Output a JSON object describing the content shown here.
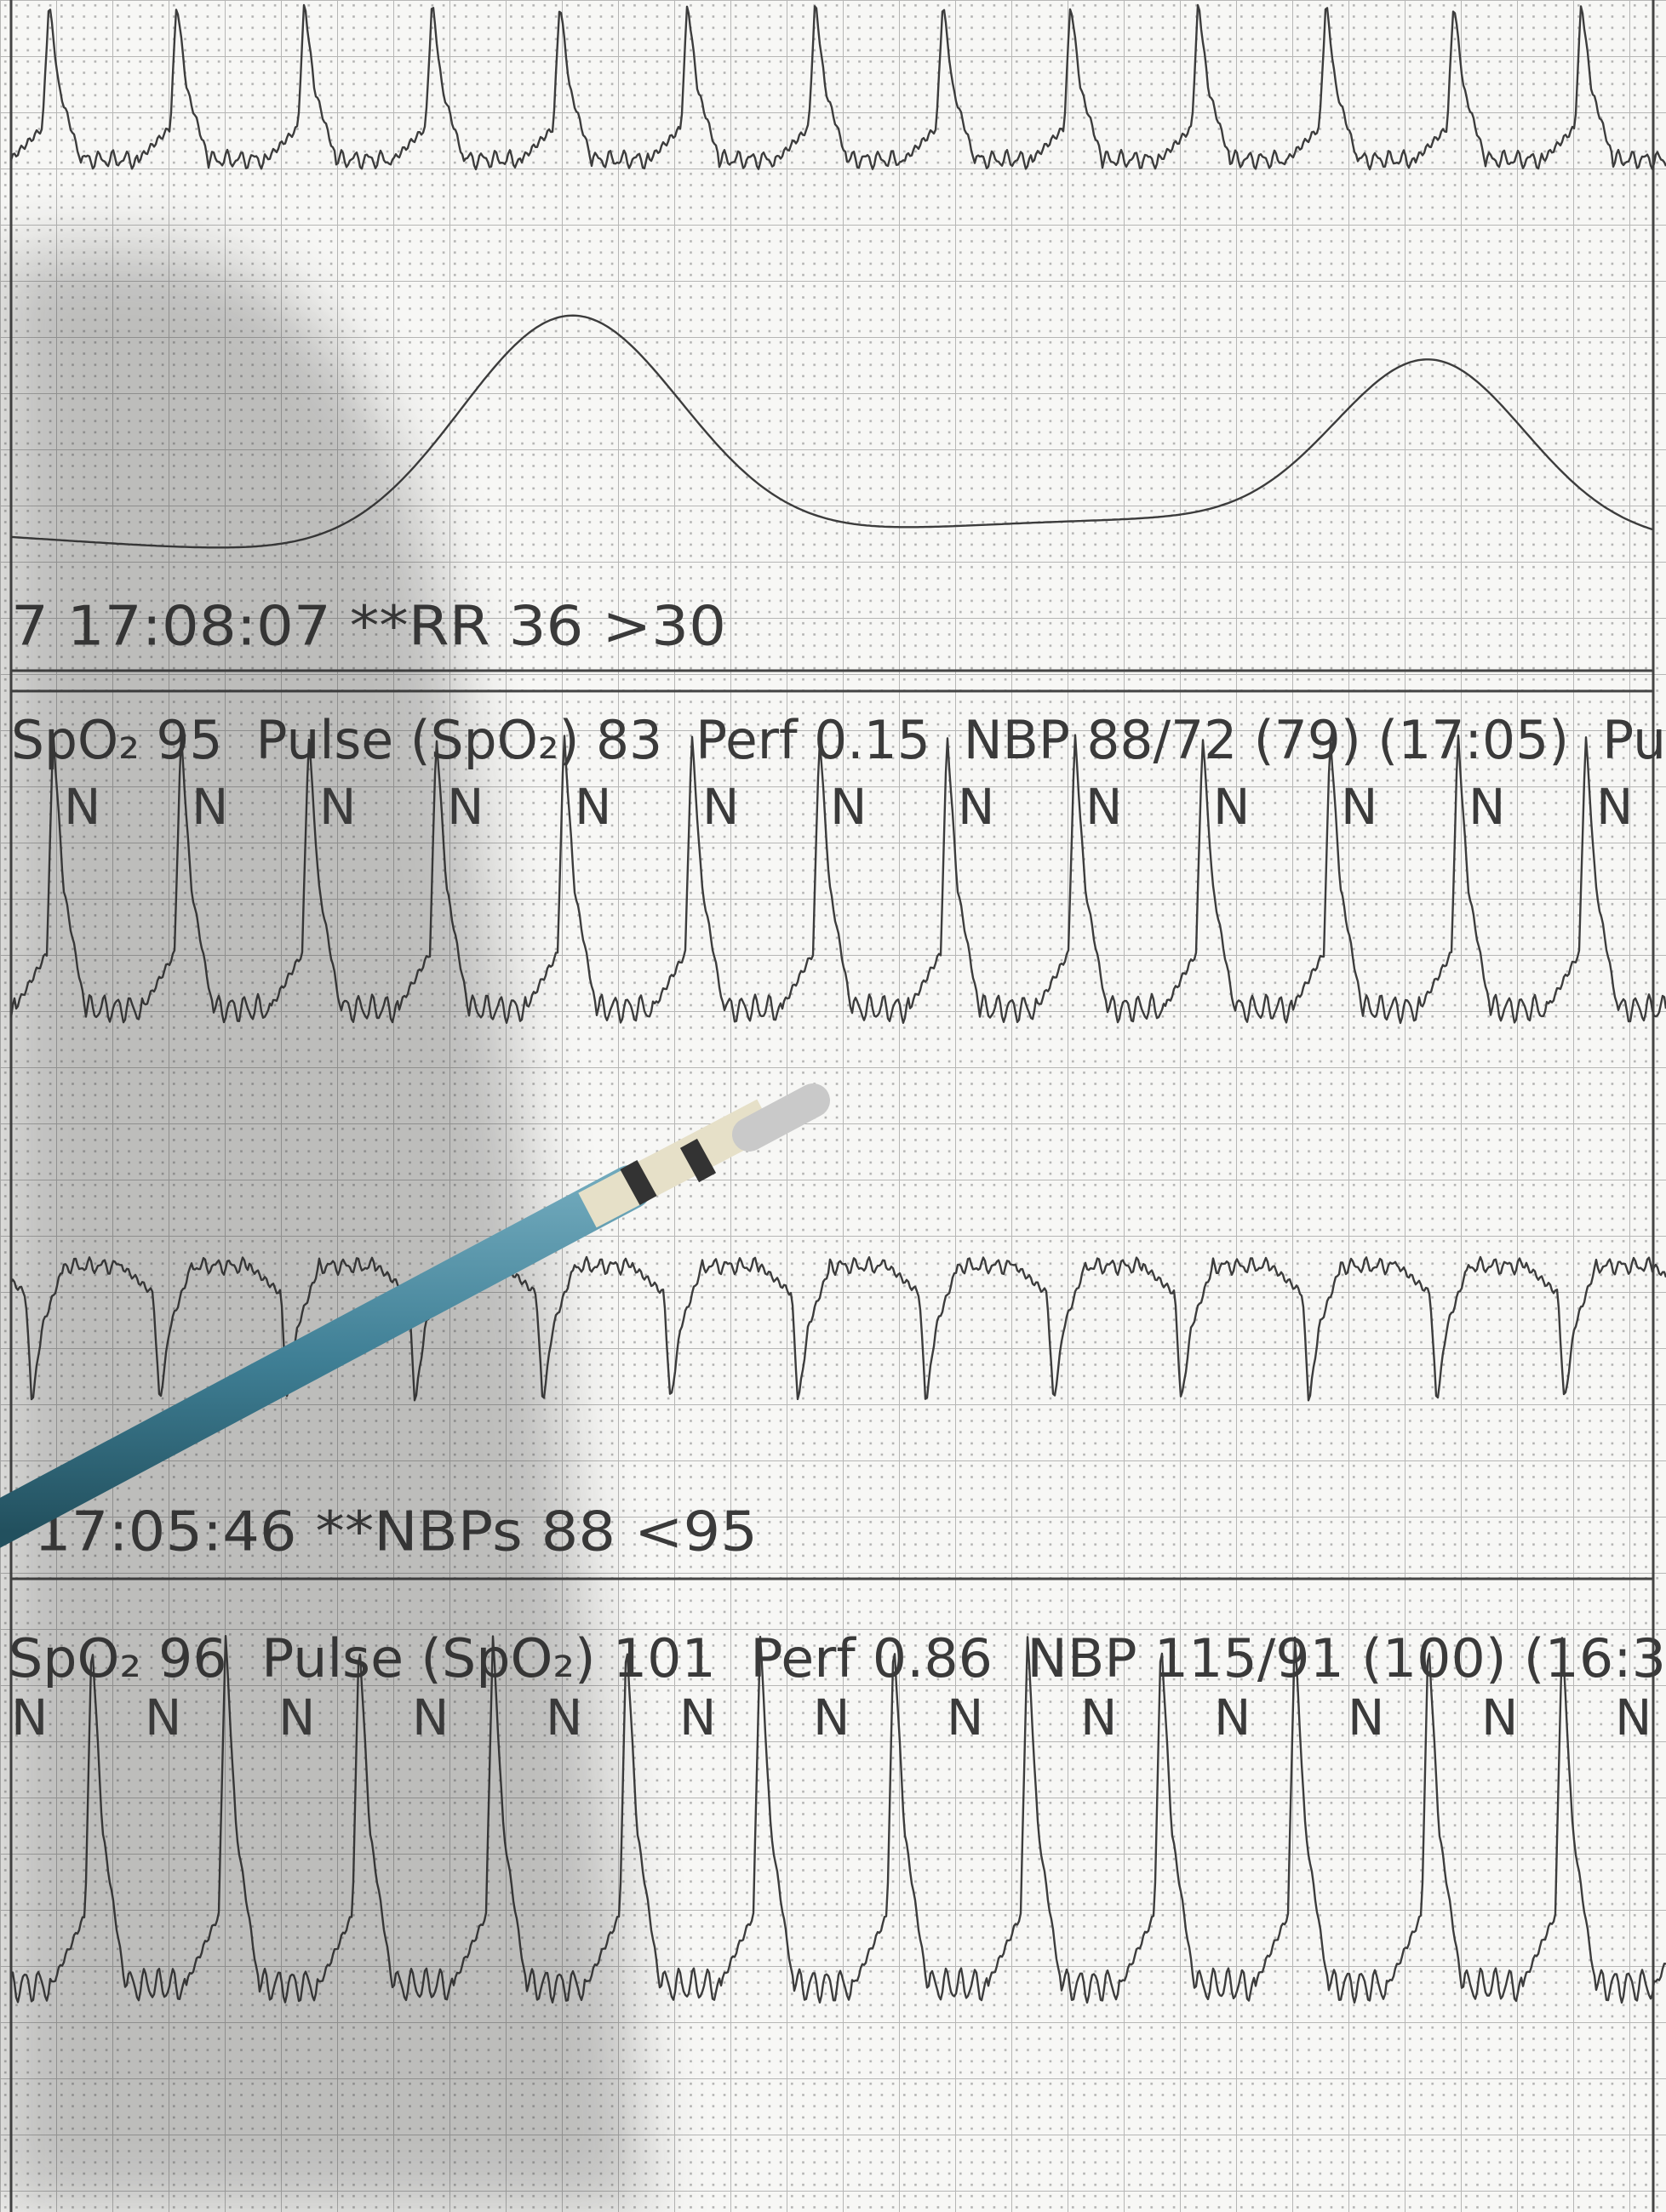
{
  "alarm_1": {
    "text": "7 17:08:07 **RR 36 >30"
  },
  "status_1": {
    "text": "SpO₂ 95  Pulse (SpO₂) 83  Perf 0.15  NBP 88/72 (79) (17:05)  Pu",
    "beat_labels": [
      "N",
      "N",
      "N",
      "N",
      "N",
      "N",
      "N",
      "N",
      "N",
      "N",
      "N",
      "N",
      "N"
    ]
  },
  "alarm_2": {
    "text": "17:05:46 **NBPs 88 <95"
  },
  "status_2": {
    "text": "SpO₂ 96  Pulse (SpO₂) 101  Perf 0.86  NBP 115/91 (100) (16:3",
    "beat_labels": [
      "N",
      "N",
      "N",
      "N",
      "N",
      "N",
      "N",
      "N",
      "N",
      "N",
      "N",
      "N",
      "N"
    ]
  }
}
